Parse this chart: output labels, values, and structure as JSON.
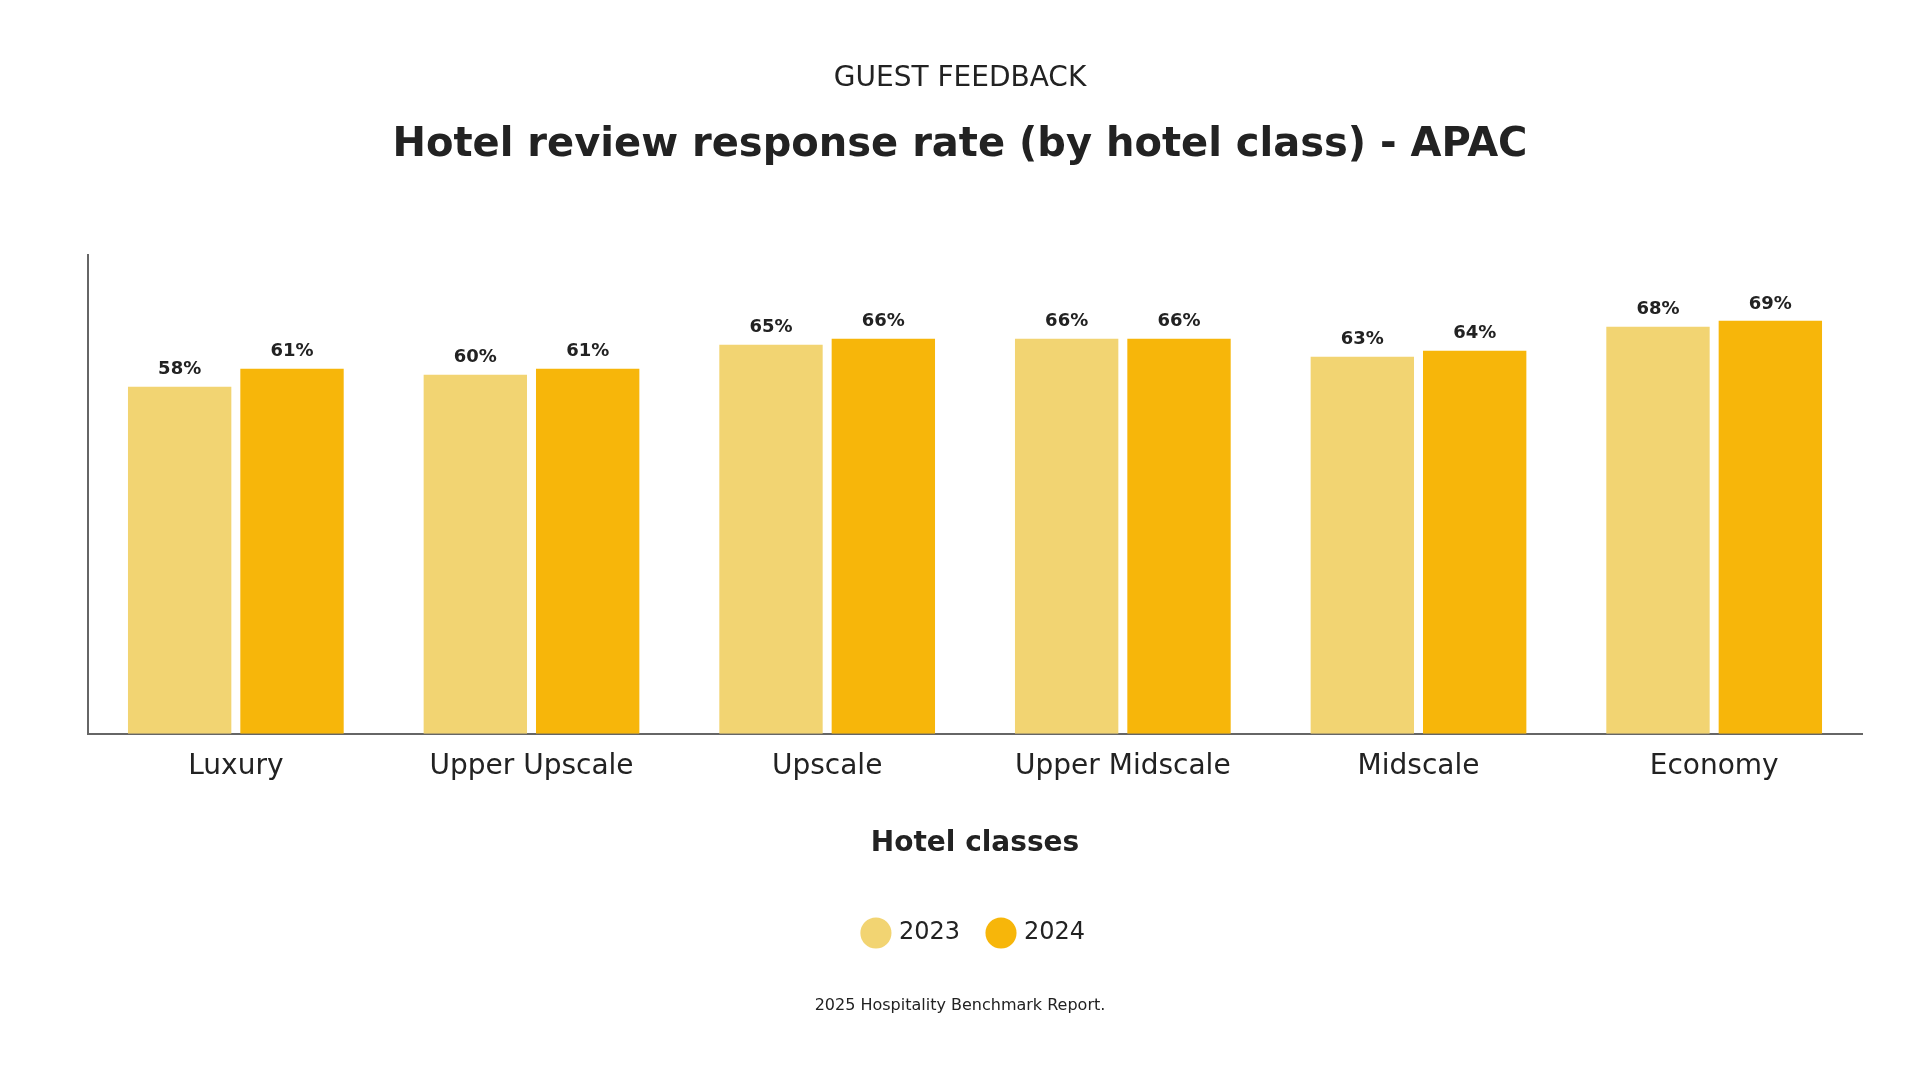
{
  "chart_data": {
    "type": "bar",
    "subtitle": "GUEST FEEDBACK",
    "title": "Hotel review response rate (by hotel class) - APAC",
    "xlabel": "Hotel classes",
    "categories": [
      "Luxury",
      "Upper Upscale",
      "Upscale",
      "Upper Midscale",
      "Midscale",
      "Economy"
    ],
    "series": [
      {
        "name": "2023",
        "color": "#f2d472",
        "values": [
          58,
          60,
          65,
          66,
          63,
          68
        ],
        "value_labels": [
          "58%",
          "60%",
          "65%",
          "66%",
          "63%",
          "68%"
        ]
      },
      {
        "name": "2024",
        "color": "#f7b60a",
        "values": [
          61,
          61,
          66,
          66,
          64,
          69
        ],
        "value_labels": [
          "61%",
          "61%",
          "66%",
          "66%",
          "64%",
          "69%"
        ]
      }
    ],
    "grid": false,
    "legend": "bottom",
    "tick_labels": "x",
    "annotations": [
      "2025 Hospitality Benchmark Report."
    ]
  }
}
